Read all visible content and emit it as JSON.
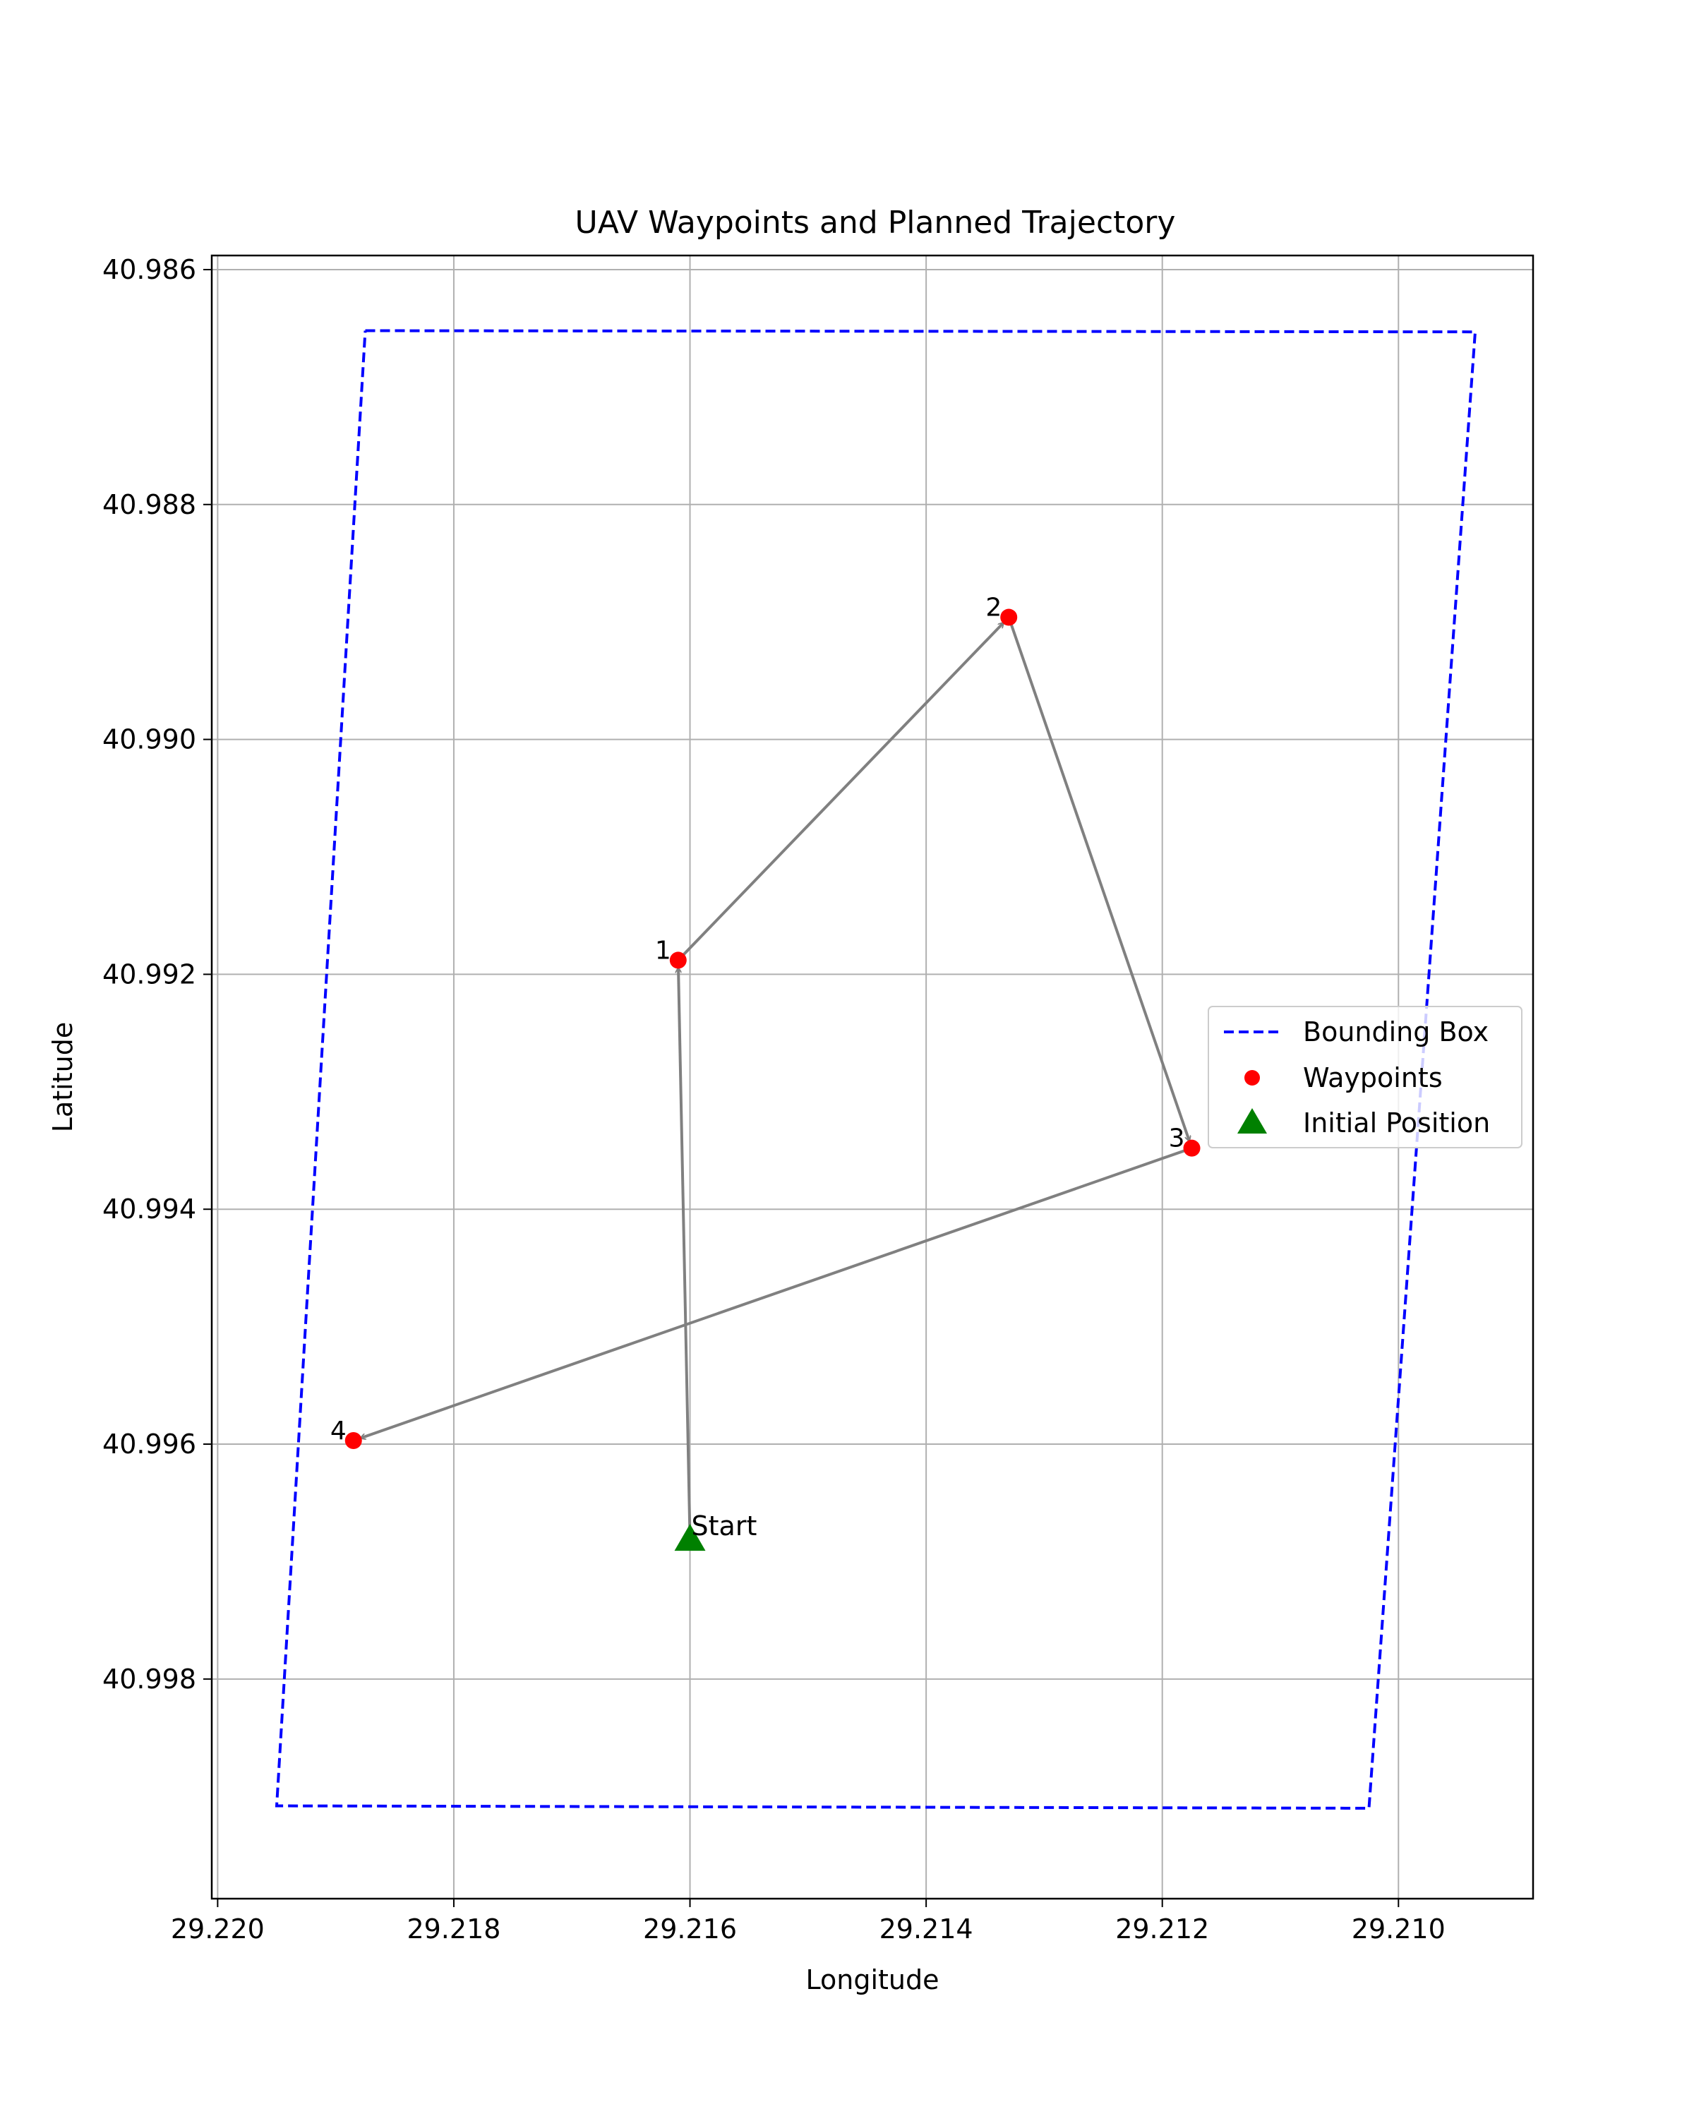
{
  "chart_data": {
    "type": "scatter",
    "title": "UAV Waypoints and Planned Trajectory",
    "xlabel": "Longitude",
    "ylabel": "Latitude",
    "x_inverted": true,
    "y_inverted": true,
    "xlim": [
      29.22005,
      29.20886
    ],
    "ylim": [
      40.98588,
      40.99987
    ],
    "xticks": [
      29.22,
      29.218,
      29.216,
      29.214,
      29.212,
      29.21
    ],
    "xtick_labels": [
      "29.220",
      "29.218",
      "29.216",
      "29.214",
      "29.212",
      "29.210"
    ],
    "yticks": [
      40.986,
      40.988,
      40.99,
      40.992,
      40.994,
      40.996,
      40.998
    ],
    "ytick_labels": [
      "40.986",
      "40.988",
      "40.990",
      "40.992",
      "40.994",
      "40.996",
      "40.998"
    ],
    "grid": true,
    "legend_position": "center-right",
    "series": [
      {
        "name": "Bounding Box",
        "kind": "dashed-line",
        "color": "#0000ff",
        "points": [
          {
            "x": 29.21875,
            "y": 40.98652
          },
          {
            "x": 29.20935,
            "y": 40.98653
          },
          {
            "x": 29.21025,
            "y": 40.9991
          },
          {
            "x": 29.2195,
            "y": 40.99908
          },
          {
            "x": 29.21875,
            "y": 40.98652
          }
        ]
      },
      {
        "name": "Waypoints",
        "kind": "scatter",
        "color": "#ff0000",
        "points": [
          {
            "label": "1",
            "x": 29.2161,
            "y": 40.99188
          },
          {
            "label": "2",
            "x": 29.2133,
            "y": 40.98896
          },
          {
            "label": "3",
            "x": 29.21175,
            "y": 40.99348
          },
          {
            "label": "4",
            "x": 29.21885,
            "y": 40.99597
          }
        ]
      },
      {
        "name": "Initial Position",
        "kind": "triangle",
        "color": "#008000",
        "points": [
          {
            "label": "Start",
            "x": 29.216,
            "y": 40.9968
          }
        ]
      }
    ],
    "trajectory": {
      "color": "#808080",
      "order": [
        "Start",
        "1",
        "2",
        "3",
        "4"
      ]
    }
  }
}
